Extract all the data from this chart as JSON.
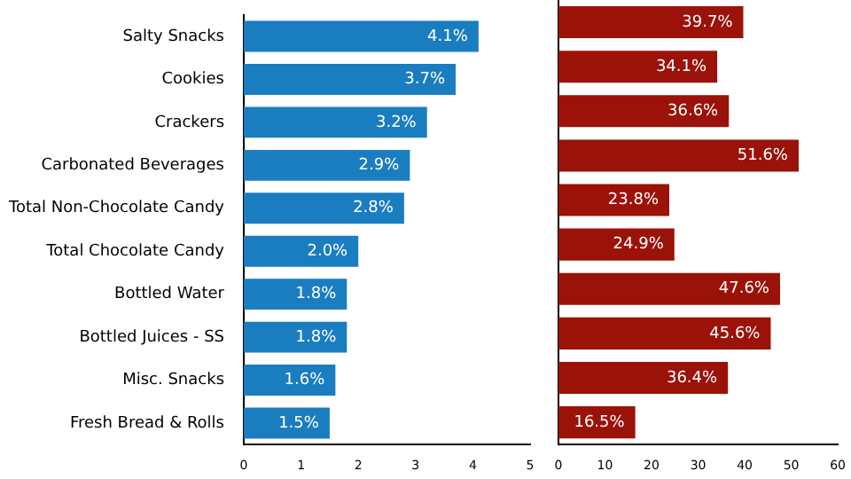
{
  "chart_data": [
    {
      "type": "bar",
      "orientation": "horizontal",
      "categories": [
        "Salty Snacks",
        "Cookies",
        "Crackers",
        "Carbonated Beverages",
        "Total Non-Chocolate Candy",
        "Total Chocolate Candy",
        "Bottled Water",
        "Bottled Juices - SS",
        "Misc. Snacks",
        "Fresh Bread & Rolls"
      ],
      "values": [
        4.1,
        3.7,
        3.2,
        2.9,
        2.8,
        2.0,
        1.8,
        1.8,
        1.6,
        1.5
      ],
      "value_labels": [
        "4.1%",
        "3.7%",
        "3.2%",
        "2.9%",
        "2.8%",
        "2.0%",
        "1.8%",
        "1.8%",
        "1.6%",
        "1.5%"
      ],
      "color": "#1a7dc0",
      "xlim": [
        0,
        5
      ],
      "xticks": [
        0,
        1,
        2,
        3,
        4,
        5
      ],
      "grid": false,
      "legend": false
    },
    {
      "type": "bar",
      "orientation": "horizontal",
      "categories": [
        null,
        null,
        null,
        null,
        null,
        null,
        null,
        null,
        null,
        null
      ],
      "values": [
        39.7,
        34.1,
        36.6,
        51.6,
        23.8,
        24.9,
        47.6,
        45.6,
        36.4,
        16.5
      ],
      "value_labels": [
        "39.7%",
        "34.1%",
        "36.6%",
        "51.6%",
        "23.8%",
        "24.9%",
        "47.6%",
        "45.6%",
        "36.4%",
        "16.5%"
      ],
      "color": "#9b1208",
      "xlim": [
        0,
        60
      ],
      "xticks": [
        0,
        10,
        20,
        30,
        40,
        50,
        60
      ],
      "grid": false,
      "legend": false,
      "tick_labels": "x"
    }
  ]
}
